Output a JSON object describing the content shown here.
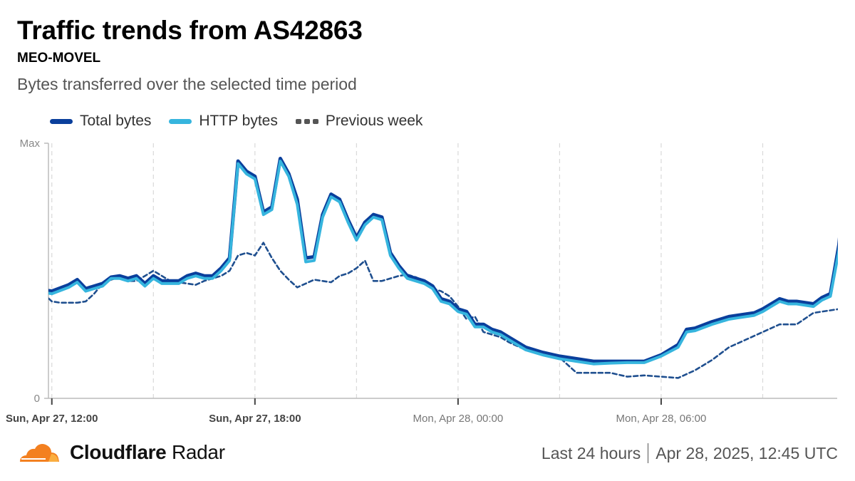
{
  "header": {
    "title": "Traffic trends from AS42863",
    "subtitle": "MEO-MOVEL",
    "description": "Bytes transferred over the selected time period"
  },
  "legend": {
    "total": "Total bytes",
    "http": "HTTP bytes",
    "previous": "Previous week"
  },
  "colors": {
    "total": "#0a3f9c",
    "http": "#36b5de",
    "previous": "#1f4f8f",
    "brand_orange": "#f38020",
    "brand_orange_light": "#faae40"
  },
  "footer": {
    "brand_bold": "Cloudflare",
    "brand_rest": "Radar",
    "period": "Last 24 hours",
    "timestamp": "Apr 28, 2025, 12:45 UTC"
  },
  "chart_data": {
    "type": "line",
    "y_axis_labels": [
      "Max",
      "0"
    ],
    "ylim": [
      0,
      100
    ],
    "x_unit": "hours since Sun, Apr 27, 12:00",
    "xlim": [
      -0.1,
      23.2
    ],
    "x_ticks": [
      {
        "x": 0,
        "label": "Sun, Apr 27, 12:00",
        "bold": true
      },
      {
        "x": 6,
        "label": "Sun, Apr 27, 18:00",
        "bold": true
      },
      {
        "x": 12,
        "label": "Mon, Apr 28, 00:00",
        "bold": false
      },
      {
        "x": 18,
        "label": "Mon, Apr 28, 06:00",
        "bold": false
      }
    ],
    "gridlines_x": [
      0,
      3,
      6,
      9,
      12,
      15,
      18,
      21
    ],
    "legend_position": "top-left",
    "series": [
      {
        "name": "Total bytes",
        "key": "total",
        "points": [
          [
            -0.25,
            42.5
          ],
          [
            0,
            42
          ],
          [
            0.5,
            44.5
          ],
          [
            0.75,
            46.5
          ],
          [
            1,
            43
          ],
          [
            1.5,
            45
          ],
          [
            1.75,
            47.5
          ],
          [
            2,
            48
          ],
          [
            2.25,
            47
          ],
          [
            2.5,
            48
          ],
          [
            2.75,
            45
          ],
          [
            3,
            48
          ],
          [
            3.25,
            46
          ],
          [
            3.75,
            46
          ],
          [
            4,
            48
          ],
          [
            4.25,
            49
          ],
          [
            4.5,
            48
          ],
          [
            4.75,
            48
          ],
          [
            5,
            51
          ],
          [
            5.25,
            55
          ],
          [
            5.5,
            93
          ],
          [
            5.75,
            89
          ],
          [
            6,
            87
          ],
          [
            6.25,
            73
          ],
          [
            6.5,
            75
          ],
          [
            6.75,
            94
          ],
          [
            7,
            88
          ],
          [
            7.25,
            78
          ],
          [
            7.5,
            55
          ],
          [
            7.75,
            55.5
          ],
          [
            8,
            72
          ],
          [
            8.25,
            80
          ],
          [
            8.5,
            78
          ],
          [
            8.75,
            70
          ],
          [
            9,
            63
          ],
          [
            9.25,
            69
          ],
          [
            9.5,
            72
          ],
          [
            9.75,
            71
          ],
          [
            10,
            57
          ],
          [
            10.25,
            52
          ],
          [
            10.5,
            48
          ],
          [
            10.75,
            47
          ],
          [
            11,
            46
          ],
          [
            11.25,
            44
          ],
          [
            11.5,
            39
          ],
          [
            11.75,
            38
          ],
          [
            12,
            35
          ],
          [
            12.25,
            34
          ],
          [
            12.5,
            29
          ],
          [
            12.75,
            29
          ],
          [
            13,
            27
          ],
          [
            13.25,
            26
          ],
          [
            13.5,
            24
          ],
          [
            14,
            20
          ],
          [
            14.5,
            18
          ],
          [
            15,
            16.5
          ],
          [
            15.5,
            15.5
          ],
          [
            16,
            14.5
          ],
          [
            16.5,
            14.5
          ],
          [
            17,
            14.5
          ],
          [
            17.5,
            14.5
          ],
          [
            18,
            17
          ],
          [
            18.5,
            21
          ],
          [
            18.75,
            27
          ],
          [
            19,
            27.5
          ],
          [
            19.5,
            30
          ],
          [
            20,
            32
          ],
          [
            20.25,
            32.5
          ],
          [
            20.5,
            33
          ],
          [
            20.75,
            33.5
          ],
          [
            21,
            35
          ],
          [
            21.25,
            37
          ],
          [
            21.5,
            39
          ],
          [
            21.75,
            38
          ],
          [
            22,
            38
          ],
          [
            22.5,
            37
          ],
          [
            22.75,
            39.5
          ],
          [
            23,
            41
          ],
          [
            23.25,
            60
          ],
          [
            23.5,
            94
          ],
          [
            23.75,
            100
          ],
          [
            24,
            98
          ]
        ]
      },
      {
        "name": "HTTP bytes",
        "key": "http",
        "points": [
          [
            -0.25,
            41.5
          ],
          [
            0,
            41
          ],
          [
            0.5,
            43.5
          ],
          [
            0.75,
            45.5
          ],
          [
            1,
            42
          ],
          [
            1.5,
            44
          ],
          [
            1.75,
            47
          ],
          [
            2,
            47
          ],
          [
            2.25,
            46
          ],
          [
            2.5,
            47
          ],
          [
            2.75,
            44
          ],
          [
            3,
            47
          ],
          [
            3.25,
            45
          ],
          [
            3.75,
            45
          ],
          [
            4,
            47
          ],
          [
            4.25,
            48
          ],
          [
            4.5,
            47
          ],
          [
            4.75,
            47
          ],
          [
            5,
            50
          ],
          [
            5.25,
            54
          ],
          [
            5.5,
            92
          ],
          [
            5.75,
            88
          ],
          [
            6,
            86
          ],
          [
            6.25,
            72
          ],
          [
            6.5,
            74
          ],
          [
            6.75,
            93
          ],
          [
            7,
            87
          ],
          [
            7.25,
            76
          ],
          [
            7.5,
            53.5
          ],
          [
            7.75,
            54
          ],
          [
            8,
            71
          ],
          [
            8.25,
            79
          ],
          [
            8.5,
            77
          ],
          [
            8.75,
            69
          ],
          [
            9,
            62
          ],
          [
            9.25,
            68
          ],
          [
            9.5,
            71
          ],
          [
            9.75,
            70
          ],
          [
            10,
            56
          ],
          [
            10.25,
            51
          ],
          [
            10.5,
            47
          ],
          [
            10.75,
            46
          ],
          [
            11,
            45
          ],
          [
            11.25,
            43
          ],
          [
            11.5,
            38
          ],
          [
            11.75,
            37
          ],
          [
            12,
            34
          ],
          [
            12.25,
            33
          ],
          [
            12.5,
            28
          ],
          [
            12.75,
            28
          ],
          [
            13,
            26
          ],
          [
            13.25,
            25
          ],
          [
            13.5,
            23
          ],
          [
            14,
            19
          ],
          [
            14.5,
            17
          ],
          [
            15,
            15.5
          ],
          [
            15.5,
            14.5
          ],
          [
            16,
            13.5
          ],
          [
            16.5,
            13.8
          ],
          [
            17,
            14
          ],
          [
            17.5,
            14
          ],
          [
            18,
            16.5
          ],
          [
            18.5,
            20
          ],
          [
            18.75,
            26
          ],
          [
            19,
            26.5
          ],
          [
            19.5,
            29
          ],
          [
            20,
            31
          ],
          [
            20.25,
            31.5
          ],
          [
            20.5,
            32
          ],
          [
            20.75,
            32.5
          ],
          [
            21,
            34
          ],
          [
            21.25,
            36
          ],
          [
            21.5,
            38
          ],
          [
            21.75,
            37
          ],
          [
            22,
            37
          ],
          [
            22.5,
            36
          ],
          [
            22.75,
            38.5
          ],
          [
            23,
            40
          ],
          [
            23.25,
            58
          ],
          [
            23.5,
            92
          ],
          [
            23.75,
            98
          ],
          [
            24,
            96
          ]
        ]
      },
      {
        "name": "Previous week",
        "key": "previous",
        "dashed": true,
        "points": [
          [
            -0.25,
            41
          ],
          [
            0,
            38
          ],
          [
            0.25,
            37.5
          ],
          [
            0.5,
            37.5
          ],
          [
            0.75,
            37.5
          ],
          [
            1,
            38
          ],
          [
            1.25,
            41
          ],
          [
            1.5,
            45
          ],
          [
            1.75,
            46.5
          ],
          [
            2,
            47.5
          ],
          [
            2.25,
            46
          ],
          [
            2.5,
            46
          ],
          [
            2.75,
            48
          ],
          [
            3,
            50
          ],
          [
            3.25,
            48
          ],
          [
            3.5,
            46
          ],
          [
            3.75,
            45.5
          ],
          [
            4,
            45
          ],
          [
            4.25,
            44.5
          ],
          [
            4.5,
            46
          ],
          [
            4.75,
            47
          ],
          [
            5,
            48
          ],
          [
            5.25,
            50
          ],
          [
            5.5,
            56
          ],
          [
            5.75,
            57
          ],
          [
            6,
            56
          ],
          [
            6.25,
            61
          ],
          [
            6.5,
            55
          ],
          [
            6.75,
            50
          ],
          [
            7,
            46.5
          ],
          [
            7.25,
            43.5
          ],
          [
            7.5,
            45
          ],
          [
            7.75,
            46.5
          ],
          [
            8,
            46
          ],
          [
            8.25,
            45.5
          ],
          [
            8.5,
            48
          ],
          [
            8.75,
            49
          ],
          [
            9,
            51
          ],
          [
            9.25,
            54
          ],
          [
            9.5,
            46
          ],
          [
            9.75,
            46
          ],
          [
            10,
            47
          ],
          [
            10.25,
            48
          ],
          [
            10.5,
            48.5
          ],
          [
            10.75,
            47.5
          ],
          [
            11,
            46
          ],
          [
            11.25,
            43
          ],
          [
            11.5,
            42
          ],
          [
            11.75,
            40
          ],
          [
            12,
            36
          ],
          [
            12.25,
            31
          ],
          [
            12.5,
            32
          ],
          [
            12.75,
            26
          ],
          [
            13,
            25
          ],
          [
            13.25,
            24
          ],
          [
            13.5,
            22
          ],
          [
            14,
            19
          ],
          [
            14.5,
            17.5
          ],
          [
            15,
            16
          ],
          [
            15.5,
            10
          ],
          [
            16,
            10
          ],
          [
            16.5,
            10
          ],
          [
            17,
            8.5
          ],
          [
            17.5,
            9
          ],
          [
            18,
            8.5
          ],
          [
            18.5,
            8
          ],
          [
            19,
            11
          ],
          [
            19.5,
            15
          ],
          [
            20,
            20
          ],
          [
            20.5,
            23
          ],
          [
            21,
            26
          ],
          [
            21.5,
            29
          ],
          [
            22,
            29
          ],
          [
            22.5,
            33.5
          ],
          [
            23,
            34.5
          ],
          [
            23.25,
            35
          ],
          [
            23.5,
            37
          ],
          [
            23.75,
            38
          ],
          [
            24,
            38
          ]
        ]
      }
    ]
  }
}
